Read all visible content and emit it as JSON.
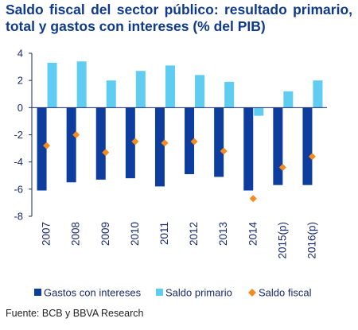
{
  "title": "Saldo fiscal del sector público: resultado primario, total y gastos con intereses (% del PIB)",
  "source": "Fuente: BCB y BBVA Research",
  "colors": {
    "gastos": "#0d3d9e",
    "primario": "#5fcdf2",
    "fiscal": "#f58a1f",
    "axis": "#1a2a6c",
    "title": "#0f3a8c"
  },
  "chart_data": {
    "type": "bar",
    "categories": [
      "2007",
      "2008",
      "2009",
      "2010",
      "2011",
      "2012",
      "2013",
      "2014",
      "2015(p)",
      "2016(p)"
    ],
    "series": [
      {
        "name": "Gastos con intereses",
        "type": "bar",
        "values": [
          -6.1,
          -5.5,
          -5.3,
          -5.2,
          -5.8,
          -4.9,
          -5.1,
          -6.1,
          -5.7,
          -5.7
        ]
      },
      {
        "name": "Saldo primario",
        "type": "bar",
        "values": [
          3.3,
          3.4,
          2.0,
          2.7,
          3.1,
          2.4,
          1.9,
          -0.6,
          1.2,
          2.0
        ]
      },
      {
        "name": "Saldo fiscal",
        "type": "scatter",
        "values": [
          -2.8,
          -2.0,
          -3.3,
          -2.5,
          -2.6,
          -2.5,
          -3.2,
          -6.7,
          -4.4,
          -3.6
        ]
      }
    ],
    "yticks": [
      4,
      2,
      0,
      -2,
      -4,
      -6,
      -8
    ],
    "ylim": [
      -8,
      4
    ],
    "legend_position": "bottom",
    "grid": false
  }
}
